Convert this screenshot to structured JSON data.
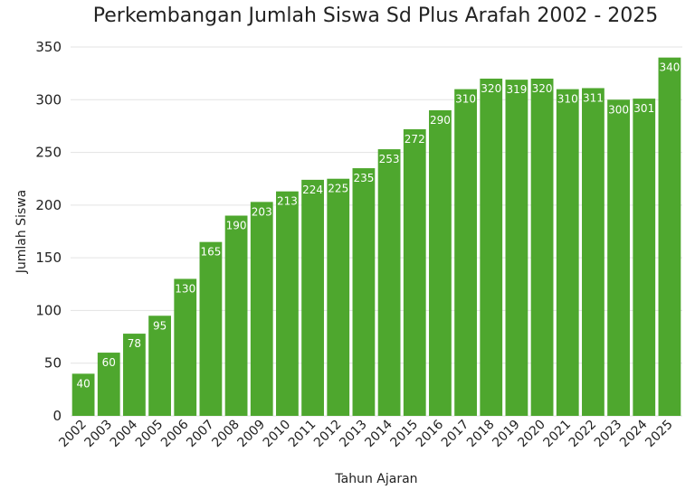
{
  "chart_data": {
    "type": "bar",
    "title": "Perkembangan Jumlah Siswa Sd Plus Arafah 2002 - 2025",
    "xlabel": "Tahun Ajaran",
    "ylabel": "Jumlah Siswa",
    "ylim": [
      0,
      350
    ],
    "yticks": [
      0,
      50,
      100,
      150,
      200,
      250,
      300,
      350
    ],
    "grid": true,
    "bar_color": "#4ea72e",
    "label_color": "#ffffff",
    "categories": [
      "2002",
      "2003",
      "2004",
      "2005",
      "2006",
      "2007",
      "2008",
      "2009",
      "2010",
      "2011",
      "2012",
      "2013",
      "2014",
      "2015",
      "2016",
      "2017",
      "2018",
      "2019",
      "2020",
      "2021",
      "2022",
      "2023",
      "2024",
      "2025"
    ],
    "values": [
      40,
      60,
      78,
      95,
      130,
      165,
      190,
      203,
      213,
      224,
      225,
      235,
      253,
      272,
      290,
      310,
      320,
      319,
      320,
      310,
      311,
      300,
      301,
      340
    ]
  }
}
